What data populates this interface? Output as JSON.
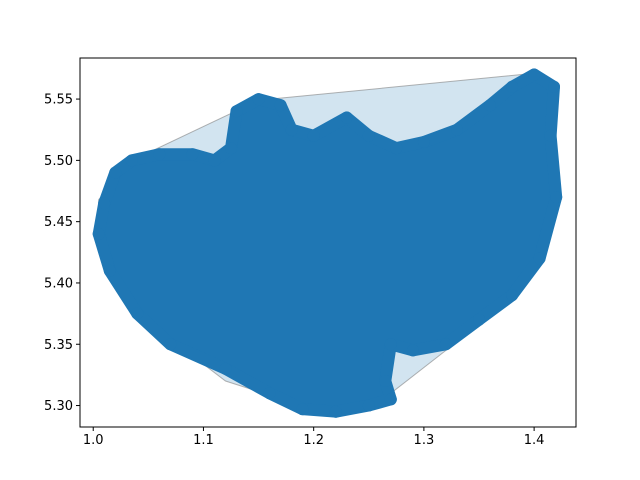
{
  "chart_data": {
    "type": "scatter",
    "title": "",
    "xlabel": "",
    "ylabel": "",
    "xlim": [
      0.988,
      1.438
    ],
    "ylim": [
      5.2825,
      5.5835
    ],
    "x_ticks": [
      1.0,
      1.1,
      1.2,
      1.3,
      1.4
    ],
    "x_tick_labels": [
      "1.0",
      "1.1",
      "1.2",
      "1.3",
      "1.4"
    ],
    "y_ticks": [
      5.3,
      5.35,
      5.4,
      5.45,
      5.5,
      5.55
    ],
    "y_tick_labels": [
      "5.30",
      "5.35",
      "5.40",
      "5.45",
      "5.50",
      "5.55"
    ],
    "grid": false,
    "legend": "none",
    "colors": {
      "points": "#1f77b4",
      "hull_fill": "#1f77b4",
      "hull_edge": "#808080"
    },
    "convex_hull": [
      [
        1.005,
        5.468
      ],
      [
        1.04,
        5.502
      ],
      [
        1.15,
        5.549
      ],
      [
        1.4,
        5.571
      ],
      [
        1.418,
        5.565
      ],
      [
        1.418,
        5.48
      ],
      [
        1.38,
        5.39
      ],
      [
        1.32,
        5.345
      ],
      [
        1.27,
        5.31
      ],
      [
        1.2,
        5.297
      ],
      [
        1.12,
        5.32
      ],
      [
        1.04,
        5.375
      ],
      [
        1.005,
        5.44
      ]
    ],
    "point_cloud_boundary": [
      [
        1.005,
        5.44
      ],
      [
        1.01,
        5.465
      ],
      [
        1.02,
        5.49
      ],
      [
        1.035,
        5.5
      ],
      [
        1.06,
        5.505
      ],
      [
        1.09,
        5.505
      ],
      [
        1.11,
        5.5
      ],
      [
        1.125,
        5.51
      ],
      [
        1.13,
        5.54
      ],
      [
        1.15,
        5.55
      ],
      [
        1.17,
        5.545
      ],
      [
        1.18,
        5.525
      ],
      [
        1.2,
        5.52
      ],
      [
        1.23,
        5.535
      ],
      [
        1.25,
        5.52
      ],
      [
        1.275,
        5.51
      ],
      [
        1.3,
        5.515
      ],
      [
        1.33,
        5.525
      ],
      [
        1.36,
        5.545
      ],
      [
        1.38,
        5.56
      ],
      [
        1.4,
        5.57
      ],
      [
        1.418,
        5.56
      ],
      [
        1.415,
        5.52
      ],
      [
        1.42,
        5.47
      ],
      [
        1.405,
        5.42
      ],
      [
        1.38,
        5.39
      ],
      [
        1.35,
        5.37
      ],
      [
        1.32,
        5.35
      ],
      [
        1.29,
        5.345
      ],
      [
        1.27,
        5.35
      ],
      [
        1.265,
        5.32
      ],
      [
        1.27,
        5.305
      ],
      [
        1.25,
        5.3
      ],
      [
        1.22,
        5.295
      ],
      [
        1.19,
        5.297
      ],
      [
        1.16,
        5.31
      ],
      [
        1.12,
        5.33
      ],
      [
        1.07,
        5.35
      ],
      [
        1.04,
        5.375
      ],
      [
        1.015,
        5.41
      ]
    ]
  }
}
